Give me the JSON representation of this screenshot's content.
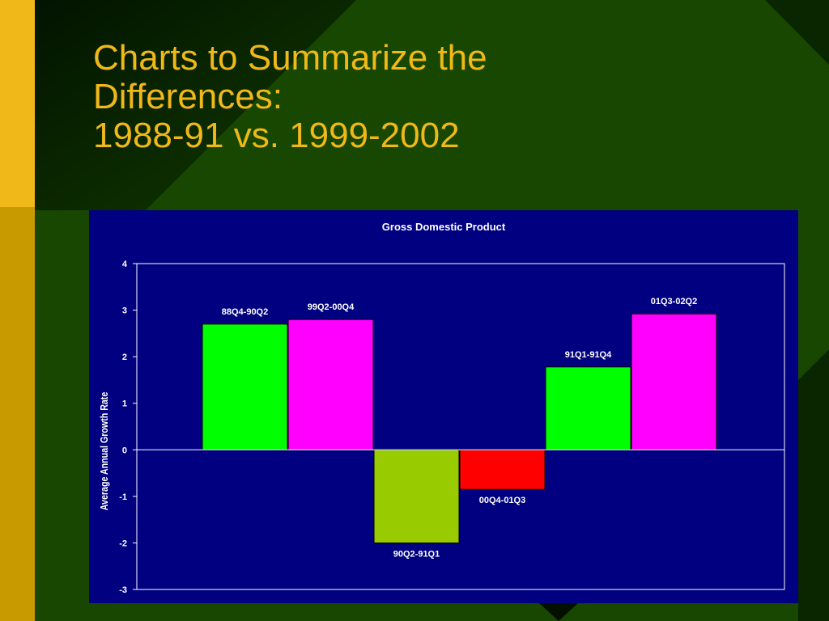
{
  "slide": {
    "title_line1": "Charts to Summarize the",
    "title_line2": "Differences:",
    "title_line3": "1988-91 vs. 1999-2002"
  },
  "colors": {
    "title": "#f0b818",
    "background_dark": "#0c2f00",
    "background_green": "#1a4a00",
    "sidebar_bright": "#f0b818",
    "sidebar_dark": "#c89a00",
    "chart_panel": "#000080"
  },
  "chart_data": {
    "type": "bar",
    "title": "Gross Domestic Product",
    "xlabel": "",
    "ylabel": "Average Annual Growth Rate",
    "ylim": [
      -3,
      4
    ],
    "yticks": [
      4,
      3,
      2,
      1,
      0,
      -1,
      -2,
      -3
    ],
    "grid": false,
    "legend": "none",
    "bars": [
      {
        "label": "88Q4-90Q2",
        "value": 2.7,
        "color": "#00ff00"
      },
      {
        "label": "99Q2-00Q4",
        "value": 2.8,
        "color": "#ff00ff"
      },
      {
        "label": "90Q2-91Q1",
        "value": -2.0,
        "color": "#99cc00"
      },
      {
        "label": "00Q4-01Q3",
        "value": -0.85,
        "color": "#ff0000"
      },
      {
        "label": "91Q1-91Q4",
        "value": 1.78,
        "color": "#00ff00"
      },
      {
        "label": "01Q3-02Q2",
        "value": 2.92,
        "color": "#ff00ff"
      }
    ]
  }
}
